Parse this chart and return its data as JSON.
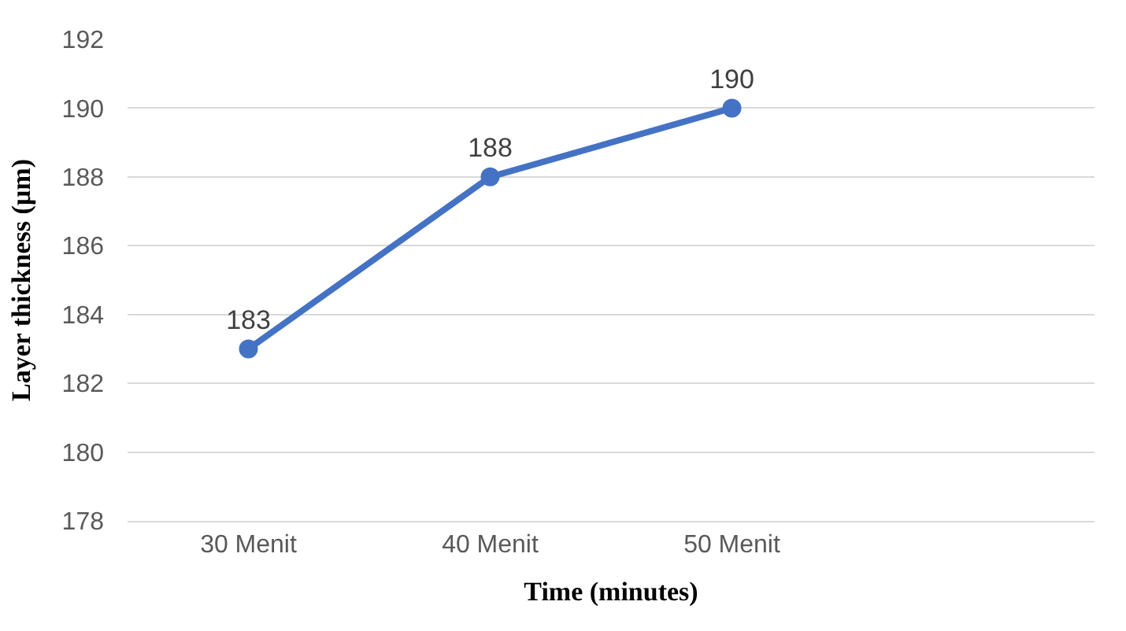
{
  "chart_data": {
    "type": "line",
    "xlabel": "Time (minutes)",
    "ylabel": "Layer thickness (µm)",
    "categories": [
      "30 Menit",
      "40 Menit",
      "50 Menit",
      null
    ],
    "series": [
      {
        "color": "#4472c4",
        "values": [
          183,
          188,
          190,
          null
        ]
      }
    ],
    "ylim": [
      178,
      192
    ],
    "yticks": [
      178,
      180,
      182,
      184,
      186,
      188,
      190,
      192
    ],
    "grid": "y",
    "marker": "circle",
    "line_style": "solid",
    "data_labels": true
  }
}
